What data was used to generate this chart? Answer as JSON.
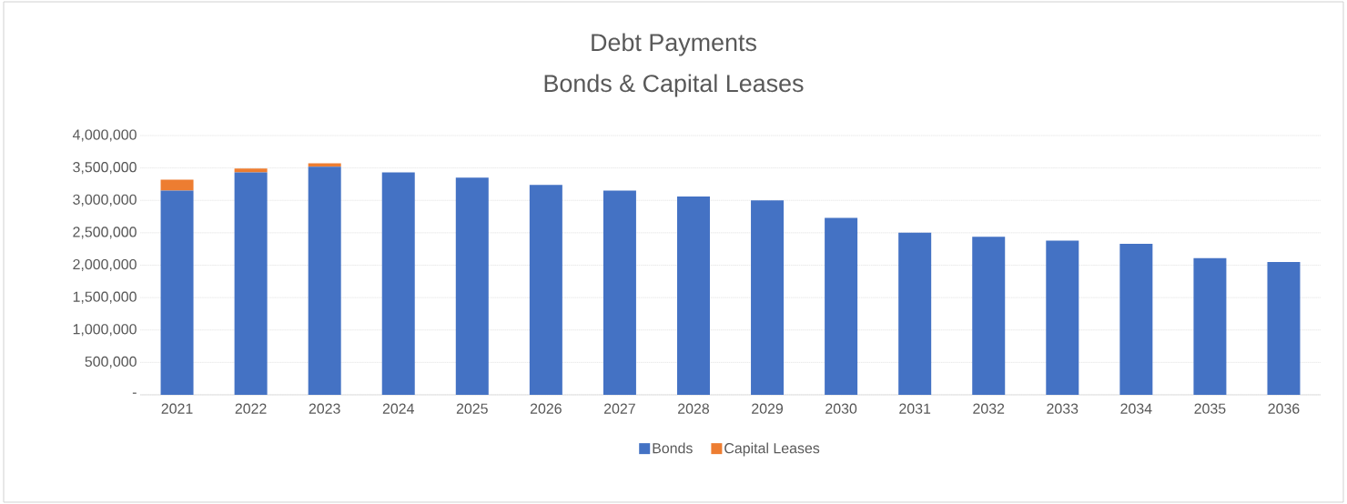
{
  "chart_data": {
    "type": "bar",
    "title": "Debt Payments",
    "subtitle": "Bonds & Capital Leases",
    "categories": [
      "2021",
      "2022",
      "2023",
      "2024",
      "2025",
      "2026",
      "2027",
      "2028",
      "2029",
      "2030",
      "2031",
      "2032",
      "2033",
      "2034",
      "2035",
      "2036"
    ],
    "stacked": true,
    "series": [
      {
        "name": "Bonds",
        "color": "#4472c4",
        "values": [
          3150000,
          3430000,
          3520000,
          3430000,
          3350000,
          3240000,
          3150000,
          3060000,
          3000000,
          2730000,
          2500000,
          2440000,
          2380000,
          2330000,
          2110000,
          2050000
        ]
      },
      {
        "name": "Capital Leases",
        "color": "#ed7d31",
        "values": [
          170000,
          60000,
          50000,
          null,
          null,
          null,
          null,
          null,
          null,
          null,
          null,
          null,
          null,
          null,
          null,
          null
        ]
      }
    ],
    "ylim": [
      0,
      4000000
    ],
    "yticks": [
      {
        "value": 0,
        "label": "-"
      },
      {
        "value": 500000,
        "label": "500,000"
      },
      {
        "value": 1000000,
        "label": "1,000,000"
      },
      {
        "value": 1500000,
        "label": "1,500,000"
      },
      {
        "value": 2000000,
        "label": "2,000,000"
      },
      {
        "value": 2500000,
        "label": "2,500,000"
      },
      {
        "value": 3000000,
        "label": "3,000,000"
      },
      {
        "value": 3500000,
        "label": "3,500,000"
      },
      {
        "value": 4000000,
        "label": "4,000,000"
      }
    ],
    "grid": "y",
    "legend": "bottom"
  }
}
